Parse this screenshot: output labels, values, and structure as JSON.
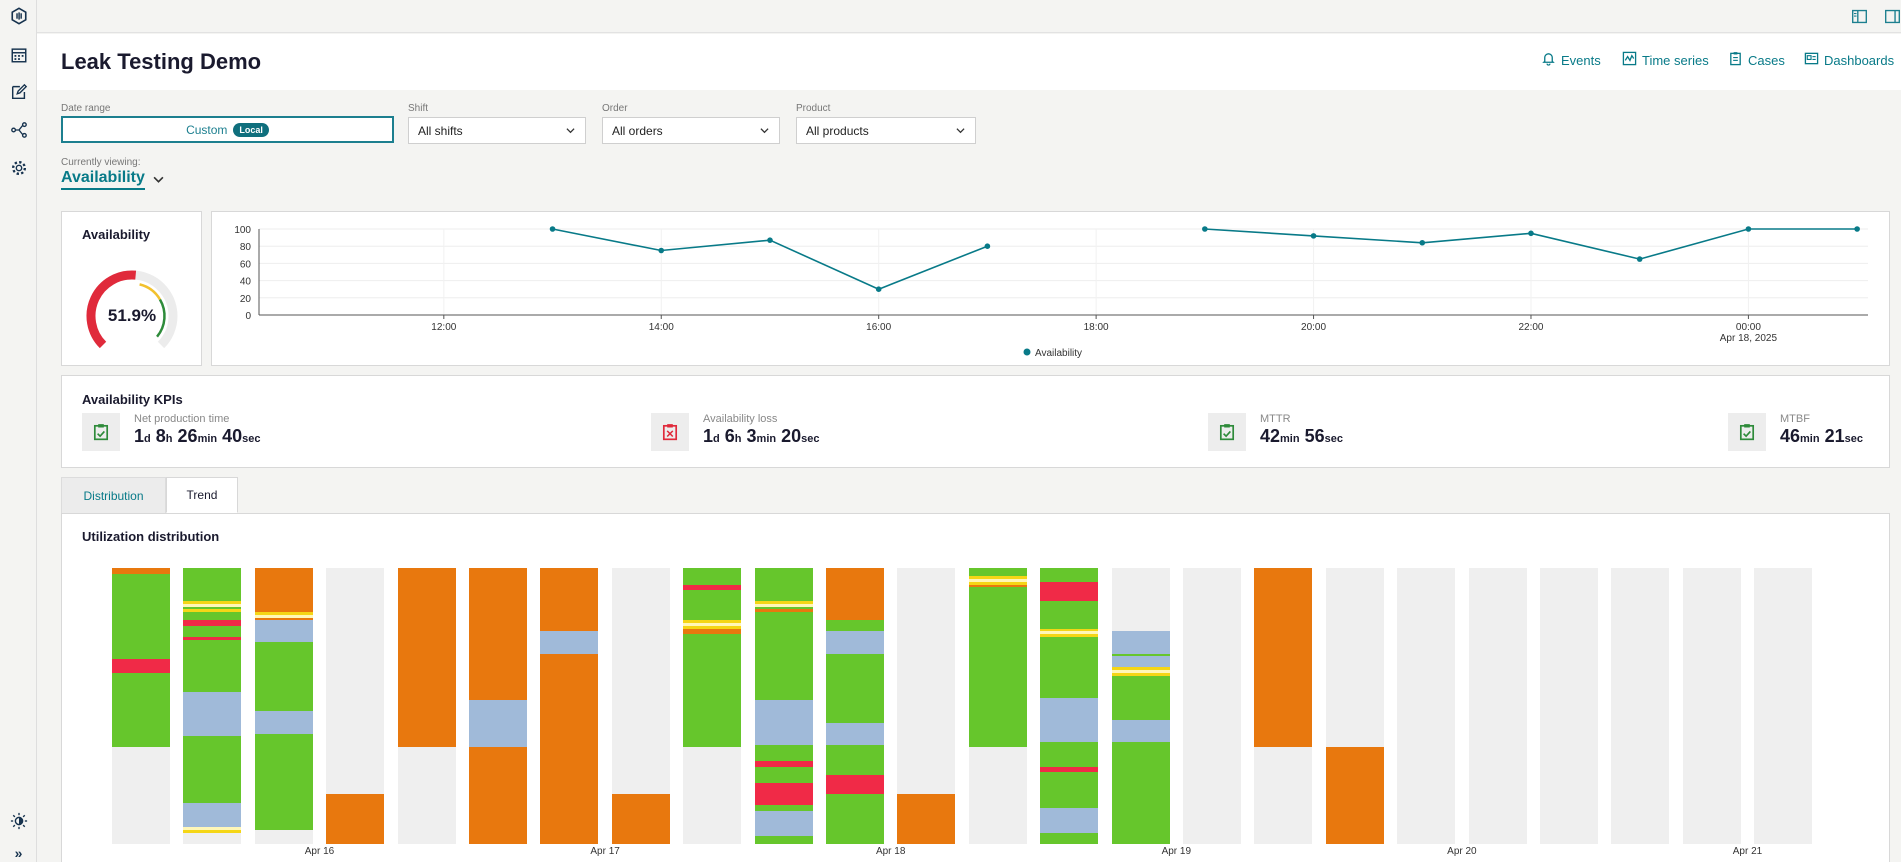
{
  "header": {
    "title": "Leak Testing Demo",
    "nav": [
      {
        "label": "Events",
        "icon": "bell-icon"
      },
      {
        "label": "Time series",
        "icon": "chart-line-icon"
      },
      {
        "label": "Cases",
        "icon": "clipboard-icon"
      },
      {
        "label": "Dashboards",
        "icon": "dashboard-icon"
      }
    ]
  },
  "sidebar": {
    "items": [
      {
        "name": "app-logo-icon"
      },
      {
        "name": "calendar-icon"
      },
      {
        "name": "edit-icon"
      },
      {
        "name": "share-icon"
      },
      {
        "name": "gear-icon"
      }
    ],
    "bottom": [
      {
        "name": "theme-toggle-icon"
      },
      {
        "name": "expand-icon",
        "glyph": "»"
      }
    ]
  },
  "filters": {
    "date_range": {
      "label": "Date range",
      "value": "Custom",
      "badge": "Local"
    },
    "shift": {
      "label": "Shift",
      "value": "All shifts"
    },
    "order": {
      "label": "Order",
      "value": "All orders"
    },
    "product": {
      "label": "Product",
      "value": "All products"
    }
  },
  "viewing": {
    "label": "Currently viewing:",
    "value": "Availability"
  },
  "gauge": {
    "title": "Availability",
    "value_text": "51.9%",
    "value": 51.9,
    "colors": {
      "red": "#e02a3b",
      "yellow": "#f2c12e",
      "green": "#2e8b3a"
    }
  },
  "chart_data": {
    "type": "line",
    "title": "",
    "ylim": [
      0,
      100
    ],
    "yticks": [
      0,
      20,
      40,
      60,
      80,
      100
    ],
    "xticks": [
      {
        "label": "12:00",
        "sublabel": "",
        "t": 12
      },
      {
        "label": "14:00",
        "sublabel": "",
        "t": 14
      },
      {
        "label": "16:00",
        "sublabel": "",
        "t": 16
      },
      {
        "label": "18:00",
        "sublabel": "",
        "t": 18
      },
      {
        "label": "20:00",
        "sublabel": "",
        "t": 20
      },
      {
        "label": "22:00",
        "sublabel": "",
        "t": 22
      },
      {
        "label": "00:00",
        "sublabel": "Apr 18, 2025",
        "t": 24
      }
    ],
    "xlim": [
      10.3,
      25.1
    ],
    "series": [
      {
        "name": "Availability",
        "color": "#087a88",
        "segments": [
          [
            {
              "t": 13.0,
              "y": 100
            },
            {
              "t": 14.0,
              "y": 75
            },
            {
              "t": 15.0,
              "y": 87
            },
            {
              "t": 16.0,
              "y": 30
            },
            {
              "t": 17.0,
              "y": 80
            }
          ],
          [
            {
              "t": 19.0,
              "y": 100
            },
            {
              "t": 20.0,
              "y": 92
            },
            {
              "t": 21.0,
              "y": 84
            },
            {
              "t": 22.0,
              "y": 95
            },
            {
              "t": 23.0,
              "y": 65
            },
            {
              "t": 24.0,
              "y": 100
            },
            {
              "t": 25.0,
              "y": 100
            }
          ]
        ]
      }
    ],
    "legend": "bottom"
  },
  "kpis": {
    "title": "Availability KPIs",
    "items": [
      {
        "label": "Net production time",
        "icon": "clipboard-check-icon",
        "icon_color": "#2e8b3a",
        "parts": [
          [
            "1",
            "d"
          ],
          [
            "8",
            "h"
          ],
          [
            "26",
            "min"
          ],
          [
            "40",
            "sec"
          ]
        ]
      },
      {
        "label": "Availability loss",
        "icon": "clipboard-x-icon",
        "icon_color": "#e02a3b",
        "parts": [
          [
            "1",
            "d"
          ],
          [
            "6",
            "h"
          ],
          [
            "3",
            "min"
          ],
          [
            "20",
            "sec"
          ]
        ]
      },
      {
        "label": "MTTR",
        "icon": "clipboard-check-icon",
        "icon_color": "#2e8b3a",
        "parts": [
          [
            "42",
            "min"
          ],
          [
            "56",
            "sec"
          ]
        ]
      },
      {
        "label": "MTBF",
        "icon": "clipboard-check-icon",
        "icon_color": "#2e8b3a",
        "parts": [
          [
            "46",
            "min"
          ],
          [
            "21",
            "sec"
          ]
        ]
      }
    ]
  },
  "tabs": [
    {
      "label": "Distribution",
      "active": false
    },
    {
      "label": "Trend",
      "active": true
    }
  ],
  "utilization": {
    "title": "Utilization distribution",
    "colors": {
      "O": "#e8780e",
      "G": "#66c62c",
      "B": "#a0bad9",
      "R": "#f02a47",
      "Y": "#f5d616",
      "W": "#fff7b8",
      "E": "#efefef"
    },
    "xlabels": [
      {
        "label": "Apr 16",
        "bar": 3
      },
      {
        "label": "Apr 17",
        "bar": 7
      },
      {
        "label": "Apr 18",
        "bar": 11
      },
      {
        "label": "Apr 19",
        "bar": 15
      },
      {
        "label": "Apr 20",
        "bar": 19
      },
      {
        "label": "Apr 21",
        "bar": 23
      }
    ],
    "bars": [
      [
        [
          "O",
          2
        ],
        [
          "G",
          31
        ],
        [
          "R",
          5
        ],
        [
          "G",
          27
        ],
        [
          "E",
          35
        ]
      ],
      [
        [
          "G",
          12
        ],
        [
          "Y",
          1
        ],
        [
          "W",
          1
        ],
        [
          "G",
          1
        ],
        [
          "Y",
          1
        ],
        [
          "G",
          3
        ],
        [
          "R",
          2
        ],
        [
          "G",
          4
        ],
        [
          "R",
          1
        ],
        [
          "G",
          19
        ],
        [
          "B",
          16
        ],
        [
          "G",
          24
        ],
        [
          "B",
          9
        ],
        [
          "W",
          1
        ],
        [
          "Y",
          1
        ],
        [
          "E",
          4
        ]
      ],
      [
        [
          "O",
          16
        ],
        [
          "Y",
          1
        ],
        [
          "W",
          1
        ],
        [
          "O",
          1
        ],
        [
          "B",
          8
        ],
        [
          "G",
          25
        ],
        [
          "B",
          8
        ],
        [
          "G",
          35
        ],
        [
          "E",
          5
        ]
      ],
      [
        [
          "E",
          82
        ],
        [
          "O",
          18
        ]
      ],
      [
        [
          "O",
          65
        ],
        [
          "E",
          35
        ]
      ],
      [
        [
          "O",
          48
        ],
        [
          "B",
          17
        ],
        [
          "O",
          35
        ]
      ],
      [
        [
          "O",
          23
        ],
        [
          "B",
          8
        ],
        [
          "O",
          69
        ]
      ],
      [
        [
          "E",
          82
        ],
        [
          "O",
          18
        ]
      ],
      [
        [
          "G",
          6
        ],
        [
          "R",
          2
        ],
        [
          "G",
          11
        ],
        [
          "Y",
          1
        ],
        [
          "W",
          1
        ],
        [
          "Y",
          1
        ],
        [
          "O",
          2
        ],
        [
          "G",
          41
        ],
        [
          "E",
          35
        ]
      ],
      [
        [
          "G",
          12
        ],
        [
          "Y",
          1
        ],
        [
          "W",
          1
        ],
        [
          "G",
          1
        ],
        [
          "O",
          1
        ],
        [
          "G",
          32
        ],
        [
          "B",
          16
        ],
        [
          "G",
          6
        ],
        [
          "R",
          2
        ],
        [
          "G",
          6
        ],
        [
          "R",
          8
        ],
        [
          "G",
          2
        ],
        [
          "B",
          9
        ],
        [
          "G",
          3
        ]
      ],
      [
        [
          "O",
          19
        ],
        [
          "G",
          4
        ],
        [
          "B",
          8
        ],
        [
          "G",
          25
        ],
        [
          "B",
          8
        ],
        [
          "G",
          11
        ],
        [
          "R",
          7
        ],
        [
          "G",
          18
        ]
      ],
      [
        [
          "E",
          82
        ],
        [
          "O",
          18
        ]
      ],
      [
        [
          "G",
          3
        ],
        [
          "Y",
          1
        ],
        [
          "W",
          1
        ],
        [
          "Y",
          1
        ],
        [
          "O",
          1
        ],
        [
          "G",
          58
        ],
        [
          "E",
          35
        ]
      ],
      [
        [
          "G",
          5
        ],
        [
          "R",
          7
        ],
        [
          "G",
          10
        ],
        [
          "Y",
          1
        ],
        [
          "W",
          1
        ],
        [
          "Y",
          1
        ],
        [
          "G",
          22
        ],
        [
          "B",
          16
        ],
        [
          "G",
          9
        ],
        [
          "R",
          2
        ],
        [
          "G",
          13
        ],
        [
          "B",
          9
        ],
        [
          "G",
          4
        ]
      ],
      [
        [
          "E",
          23
        ],
        [
          "B",
          8
        ],
        [
          "G",
          1
        ],
        [
          "B",
          4
        ],
        [
          "Y",
          1
        ],
        [
          "W",
          1
        ],
        [
          "Y",
          1
        ],
        [
          "G",
          16
        ],
        [
          "B",
          8
        ],
        [
          "G",
          37
        ]
      ],
      [
        [
          "E",
          100
        ]
      ],
      [
        [
          "O",
          65
        ],
        [
          "E",
          35
        ]
      ],
      [
        [
          "E",
          65
        ],
        [
          "O",
          35
        ]
      ],
      [
        [
          "E",
          100
        ]
      ],
      [
        [
          "E",
          100
        ]
      ],
      [
        [
          "E",
          100
        ]
      ],
      [
        [
          "E",
          100
        ]
      ],
      [
        [
          "E",
          100
        ]
      ],
      [
        [
          "E",
          100
        ]
      ]
    ]
  }
}
